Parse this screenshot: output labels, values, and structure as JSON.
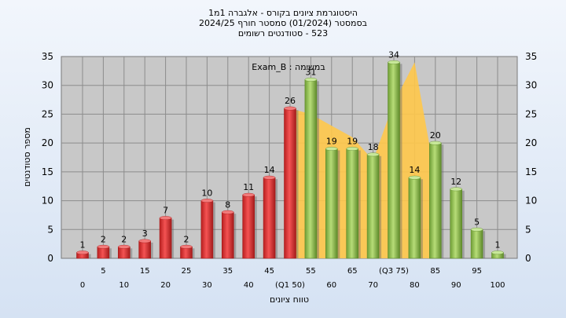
{
  "chart_data": {
    "type": "bar",
    "title_lines": [
      "היסטוגרמת ציונים בקורס - אלגברה 1מ1",
      "בסמסטר  (01/2024)  סמסטר חורף 2024/25",
      "523 - סטודנטים רשומים"
    ],
    "ylabel": "מספר סטודנטים",
    "xlabel": "טווח ציונים",
    "ylim": [
      0,
      35
    ],
    "yticks": [
      0,
      5,
      10,
      15,
      20,
      25,
      30,
      35
    ],
    "grid": true,
    "annotation": "במשימה : Exam_B",
    "bars": [
      {
        "label": "0",
        "value": 1,
        "group": "red"
      },
      {
        "label": "5",
        "value": 2,
        "group": "red"
      },
      {
        "label": "10",
        "value": 2,
        "group": "red"
      },
      {
        "label": "15",
        "value": 3,
        "group": "red"
      },
      {
        "label": "20",
        "value": 7,
        "group": "red"
      },
      {
        "label": "25",
        "value": 2,
        "group": "red"
      },
      {
        "label": "30",
        "value": 10,
        "group": "red"
      },
      {
        "label": "35",
        "value": 8,
        "group": "red"
      },
      {
        "label": "40",
        "value": 11,
        "group": "red"
      },
      {
        "label": "45",
        "value": 14,
        "group": "red"
      },
      {
        "label": "(Q1 50)",
        "value": 26,
        "group": "red"
      },
      {
        "label": "55",
        "value": 31,
        "group": "green"
      },
      {
        "label": "60",
        "value": 19,
        "group": "green"
      },
      {
        "label": "65",
        "value": 19,
        "group": "green"
      },
      {
        "label": "70",
        "value": 18,
        "group": "green"
      },
      {
        "label": "(Q3 75)",
        "value": 34,
        "group": "green"
      },
      {
        "label": "80",
        "value": 14,
        "group": "green"
      },
      {
        "label": "85",
        "value": 20,
        "group": "green"
      },
      {
        "label": "90",
        "value": 12,
        "group": "green"
      },
      {
        "label": "95",
        "value": 5,
        "group": "green"
      },
      {
        "label": "100",
        "value": 1,
        "group": "green"
      }
    ],
    "iqr_area_values": [
      26,
      25,
      23,
      21,
      17,
      27,
      34,
      14
    ],
    "colors": {
      "red": "#e23a3a",
      "red_dark": "#a51b1b",
      "green": "#9cc65a",
      "green_dark": "#5e8a2a",
      "iqr_fill": "#ffc84a",
      "plot_bg": "#c8c8c8",
      "grid": "#8c8c8c"
    }
  }
}
